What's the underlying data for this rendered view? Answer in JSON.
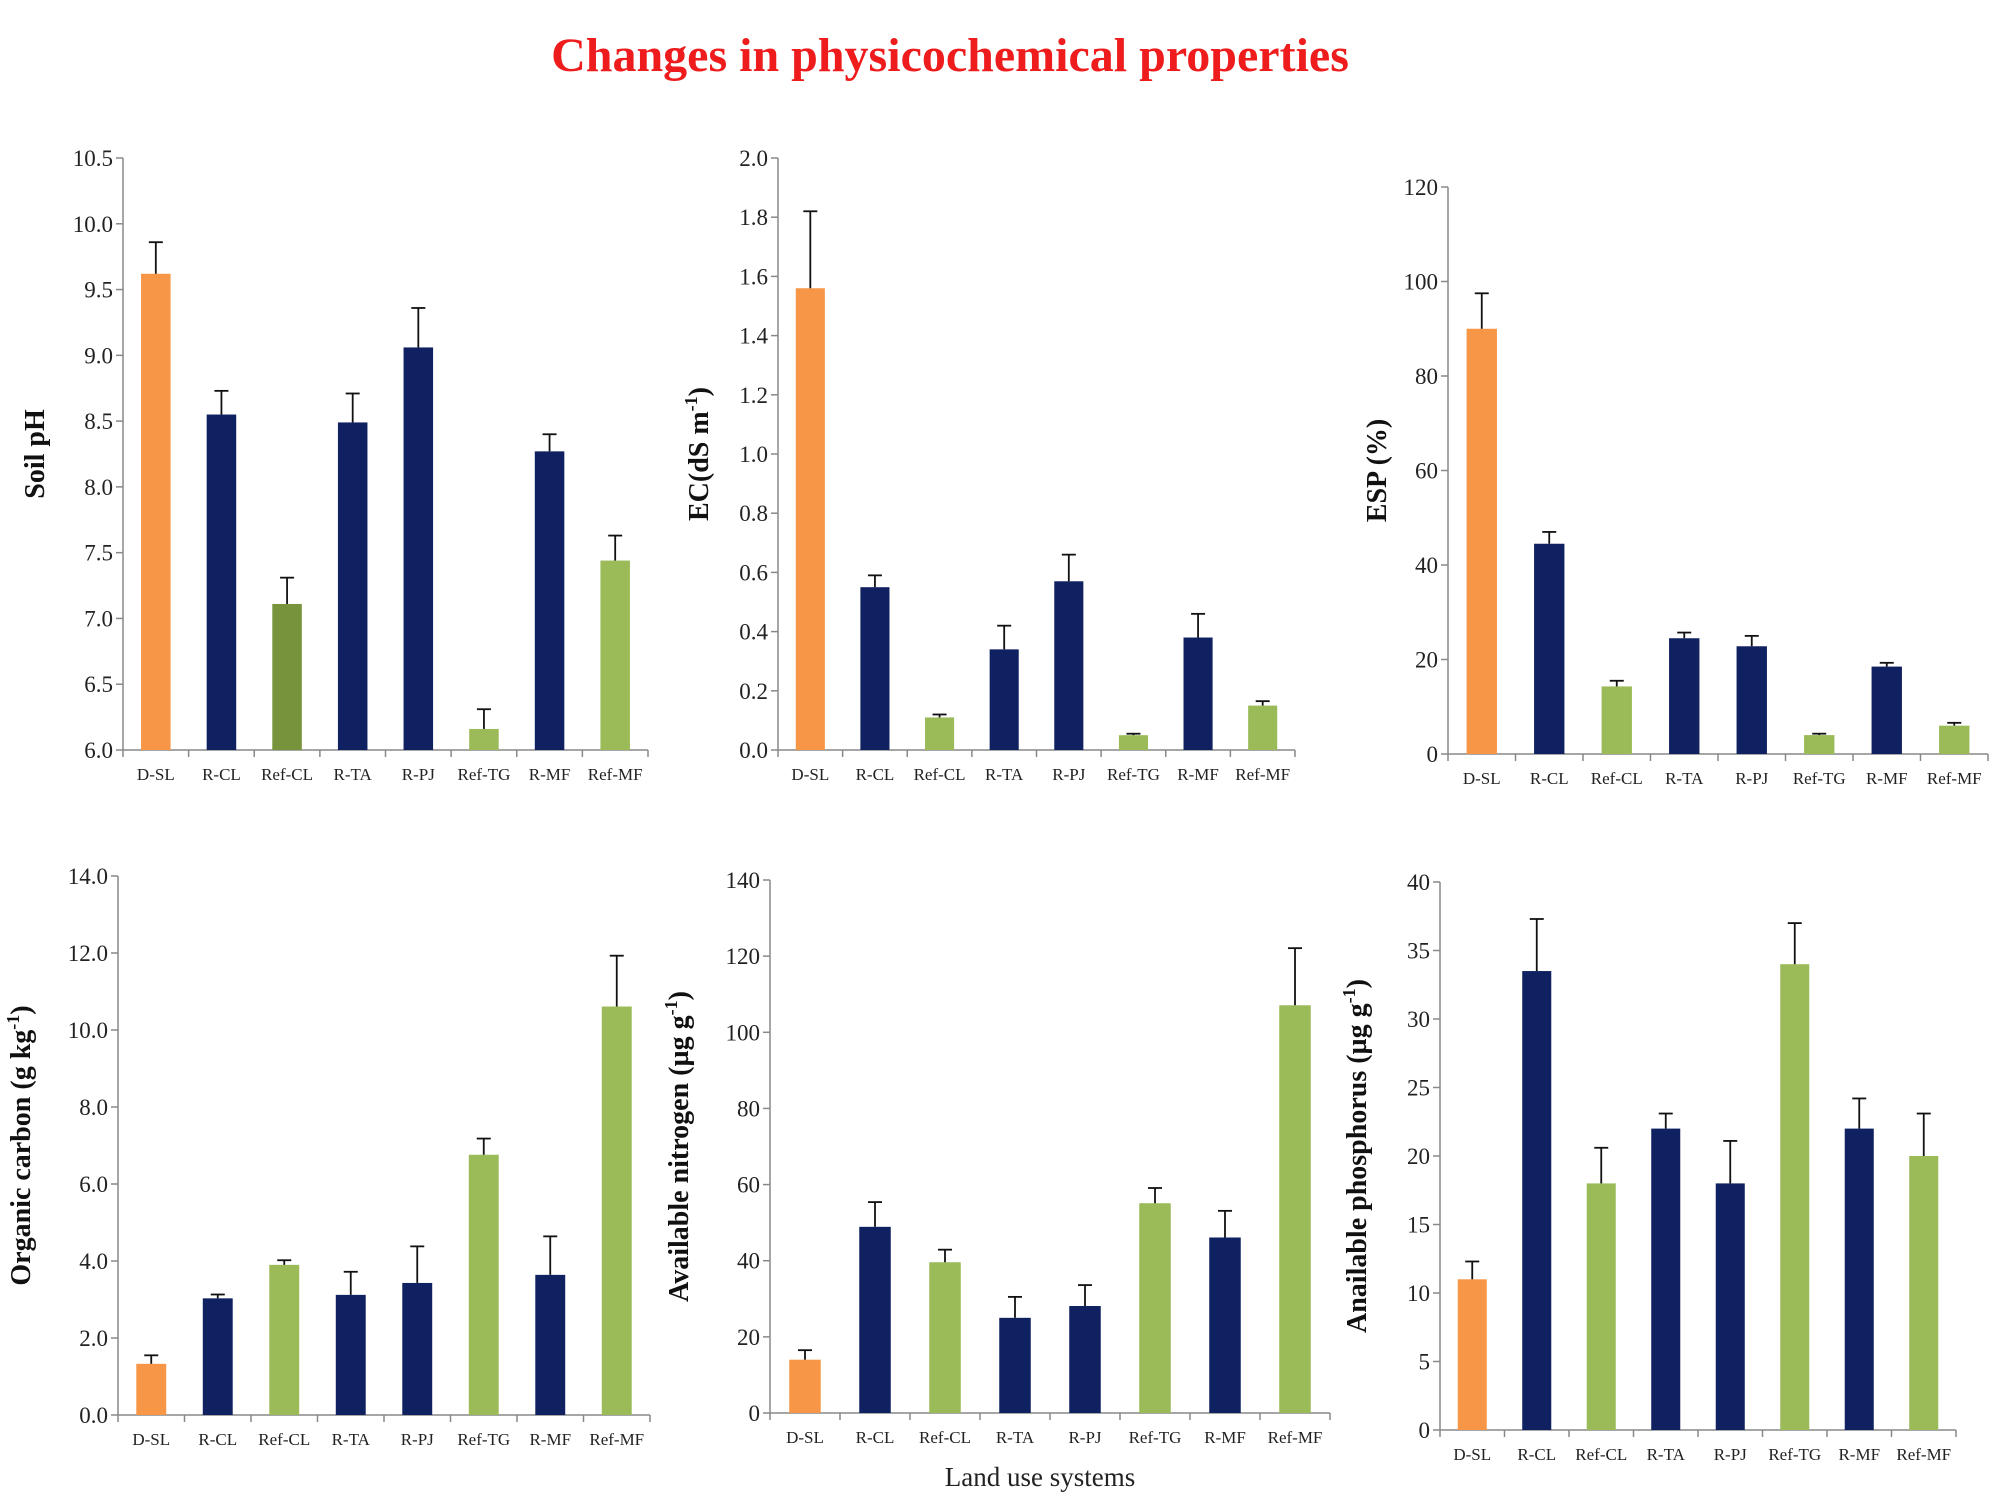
{
  "page": {
    "title": "Changes in physicochemical properties",
    "x_axis_label": "Land use systems"
  },
  "colors": {
    "degraded": "#f79646",
    "restored": "#0f2160",
    "reference": "#9bbb59",
    "ref_cl_ph": "#77933c",
    "title": "#ee1c1c"
  },
  "chart_data": [
    {
      "type": "bar",
      "ylabel": "Soil  pH",
      "ylabel_sup": "",
      "categories": [
        "D-SL",
        "R-CL",
        "Ref-CL",
        "R-TA",
        "R-PJ",
        "Ref-TG",
        "R-MF",
        "Ref-MF"
      ],
      "values": [
        9.62,
        8.55,
        7.11,
        8.49,
        9.06,
        6.16,
        8.27,
        7.44
      ],
      "errors": [
        0.24,
        0.18,
        0.2,
        0.22,
        0.3,
        0.15,
        0.13,
        0.19
      ],
      "groups": [
        "degraded",
        "restored",
        "ref_cl_ph",
        "restored",
        "restored",
        "reference",
        "restored",
        "reference"
      ],
      "ylim": [
        6.0,
        10.5
      ],
      "ticks": [
        "6.0",
        "6.5",
        "7.0",
        "7.5",
        "8.0",
        "8.5",
        "9.0",
        "9.5",
        "10.0",
        "10.5"
      ]
    },
    {
      "type": "bar",
      "ylabel": "EC(dS m",
      "ylabel_sup": "-1",
      "ylabel_close": ")",
      "categories": [
        "D-SL",
        "R-CL",
        "Ref-CL",
        "R-TA",
        "R-PJ",
        "Ref-TG",
        "R-MF",
        "Ref-MF"
      ],
      "values": [
        1.56,
        0.55,
        0.11,
        0.34,
        0.57,
        0.05,
        0.38,
        0.15
      ],
      "errors": [
        0.26,
        0.04,
        0.01,
        0.08,
        0.09,
        0.005,
        0.08,
        0.015
      ],
      "groups": [
        "degraded",
        "restored",
        "reference",
        "restored",
        "restored",
        "reference",
        "restored",
        "reference"
      ],
      "ylim": [
        0,
        2.0
      ],
      "ticks": [
        "0.0",
        "0.2",
        "0.4",
        "0.6",
        "0.8",
        "1.0",
        "1.2",
        "1.4",
        "1.6",
        "1.8",
        "2.0"
      ]
    },
    {
      "type": "bar",
      "ylabel": "ESP (%)",
      "ylabel_sup": "",
      "categories": [
        "D-SL",
        "R-CL",
        "Ref-CL",
        "R-TA",
        "R-PJ",
        "Ref-TG",
        "R-MF",
        "Ref-MF"
      ],
      "values": [
        90,
        44.5,
        14.3,
        24.5,
        22.8,
        4.0,
        18.5,
        6.0
      ],
      "errors": [
        7.5,
        2.5,
        1.2,
        1.2,
        2.2,
        0.3,
        0.8,
        0.6
      ],
      "groups": [
        "degraded",
        "restored",
        "reference",
        "restored",
        "restored",
        "reference",
        "restored",
        "reference"
      ],
      "ylim": [
        0,
        120
      ],
      "ticks": [
        "0",
        "20",
        "40",
        "60",
        "80",
        "100",
        "120"
      ]
    },
    {
      "type": "bar",
      "ylabel": "Organic carbon (g kg",
      "ylabel_sup": "-1",
      "ylabel_close": ")",
      "categories": [
        "D-SL",
        "R-CL",
        "Ref-CL",
        "R-TA",
        "R-PJ",
        "Ref-TG",
        "R-MF",
        "Ref-MF"
      ],
      "values": [
        1.33,
        3.03,
        3.9,
        3.12,
        3.43,
        6.76,
        3.64,
        10.61
      ],
      "errors": [
        0.22,
        0.1,
        0.12,
        0.6,
        0.95,
        0.42,
        1.0,
        1.32
      ],
      "groups": [
        "degraded",
        "restored",
        "reference",
        "restored",
        "restored",
        "reference",
        "restored",
        "reference"
      ],
      "ylim": [
        0,
        14.0
      ],
      "ticks": [
        "0.0",
        "2.0",
        "4.0",
        "6.0",
        "8.0",
        "10.0",
        "12.0",
        "14.0"
      ]
    },
    {
      "type": "bar",
      "ylabel": "Available nitrogen (µg g",
      "ylabel_sup": "-1",
      "ylabel_close": ")",
      "categories": [
        "D-SL",
        "R-CL",
        "Ref-CL",
        "R-TA",
        "R-PJ",
        "Ref-TG",
        "R-MF",
        "Ref-MF"
      ],
      "values": [
        14,
        48.9,
        39.6,
        25,
        28.1,
        55.1,
        46.1,
        107.1
      ],
      "errors": [
        2.5,
        6.5,
        3.3,
        5.5,
        5.5,
        4,
        7,
        15
      ],
      "groups": [
        "degraded",
        "restored",
        "reference",
        "restored",
        "restored",
        "reference",
        "restored",
        "reference"
      ],
      "ylim": [
        0,
        140
      ],
      "ticks": [
        "0",
        "20",
        "40",
        "60",
        "80",
        "100",
        "120",
        "140"
      ]
    },
    {
      "type": "bar",
      "ylabel": "Anailable phosphorus (µg g",
      "ylabel_sup": "-1",
      "ylabel_close": ")",
      "categories": [
        "D-SL",
        "R-CL",
        "Ref-CL",
        "R-TA",
        "R-PJ",
        "Ref-TG",
        "R-MF",
        "Ref-MF"
      ],
      "values": [
        11,
        33.5,
        18,
        22,
        18,
        34,
        22,
        20
      ],
      "errors": [
        1.3,
        3.8,
        2.6,
        1.1,
        3.1,
        3,
        2.2,
        3.1
      ],
      "groups": [
        "degraded",
        "restored",
        "reference",
        "restored",
        "restored",
        "reference",
        "restored",
        "reference"
      ],
      "ylim": [
        0,
        40
      ],
      "ticks": [
        "0",
        "5",
        "10",
        "15",
        "20",
        "25",
        "30",
        "35",
        "40"
      ]
    }
  ]
}
